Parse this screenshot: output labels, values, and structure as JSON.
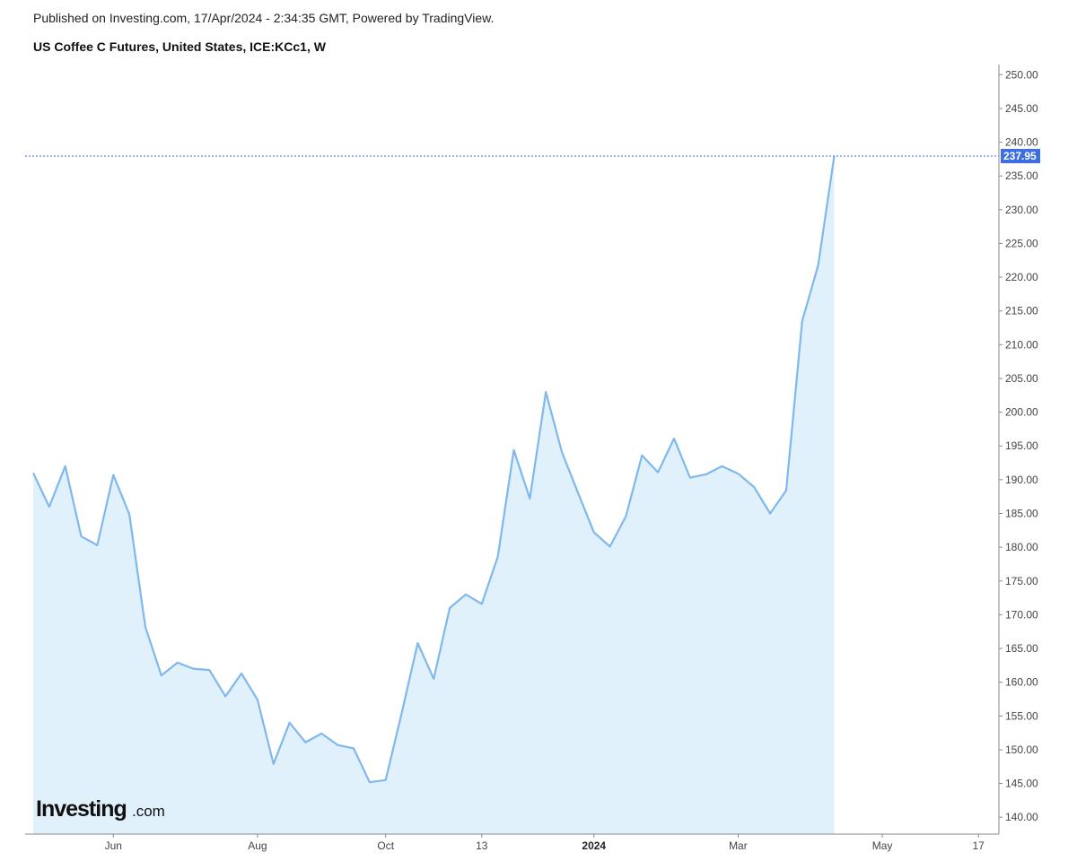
{
  "header": {
    "published": "Published on Investing.com, 17/Apr/2024 - 2:34:35 GMT, Powered by TradingView.",
    "title": "US Coffee C Futures, United States, ICE:KCc1, W"
  },
  "logo": {
    "main": "Investing",
    "sub": ".com"
  },
  "colors": {
    "line": "#7fb8ec",
    "fill": "#e1f1fb",
    "last_price": "#3d6fe0",
    "axis": "#888888"
  },
  "chart_data": {
    "type": "area",
    "title": "US Coffee C Futures, United States, ICE:KCc1, W",
    "ylim": [
      137.5,
      251.5
    ],
    "yticks": [
      "140.00",
      "145.00",
      "150.00",
      "155.00",
      "160.00",
      "165.00",
      "170.00",
      "175.00",
      "180.00",
      "185.00",
      "190.00",
      "195.00",
      "200.00",
      "205.00",
      "210.00",
      "215.00",
      "220.00",
      "225.00",
      "230.00",
      "235.00",
      "240.00",
      "245.00",
      "250.00"
    ],
    "xlabels": [
      {
        "label": "Jun",
        "index": 5,
        "bold": false
      },
      {
        "label": "Aug",
        "index": 14,
        "bold": false
      },
      {
        "label": "Oct",
        "index": 22,
        "bold": false
      },
      {
        "label": "13",
        "index": 28,
        "bold": false
      },
      {
        "label": "2024",
        "index": 35,
        "bold": true
      },
      {
        "label": "Mar",
        "index": 44,
        "bold": false
      },
      {
        "label": "May",
        "index": 53,
        "bold": false
      },
      {
        "label": "17",
        "index": 59,
        "bold": false
      }
    ],
    "x_slots": 61,
    "last_value_label": "237.95",
    "series": [
      {
        "values": [
          191.0,
          186.0,
          192.0,
          181.6,
          180.3,
          190.7,
          184.9,
          168.2,
          161.0,
          162.9,
          162.0,
          161.8,
          157.9,
          161.3,
          157.4,
          147.9,
          154.0,
          151.1,
          152.4,
          150.7,
          150.2,
          145.2,
          145.5,
          155.4,
          165.8,
          160.5,
          171.0,
          173.0,
          171.6,
          178.6,
          194.4,
          187.2,
          203.0,
          194.1,
          188.1,
          182.2,
          180.1,
          184.6,
          193.6,
          191.1,
          196.1,
          190.3,
          190.8,
          192.0,
          190.9,
          188.9,
          185.0,
          188.4,
          213.5,
          221.8,
          237.95
        ]
      }
    ]
  }
}
